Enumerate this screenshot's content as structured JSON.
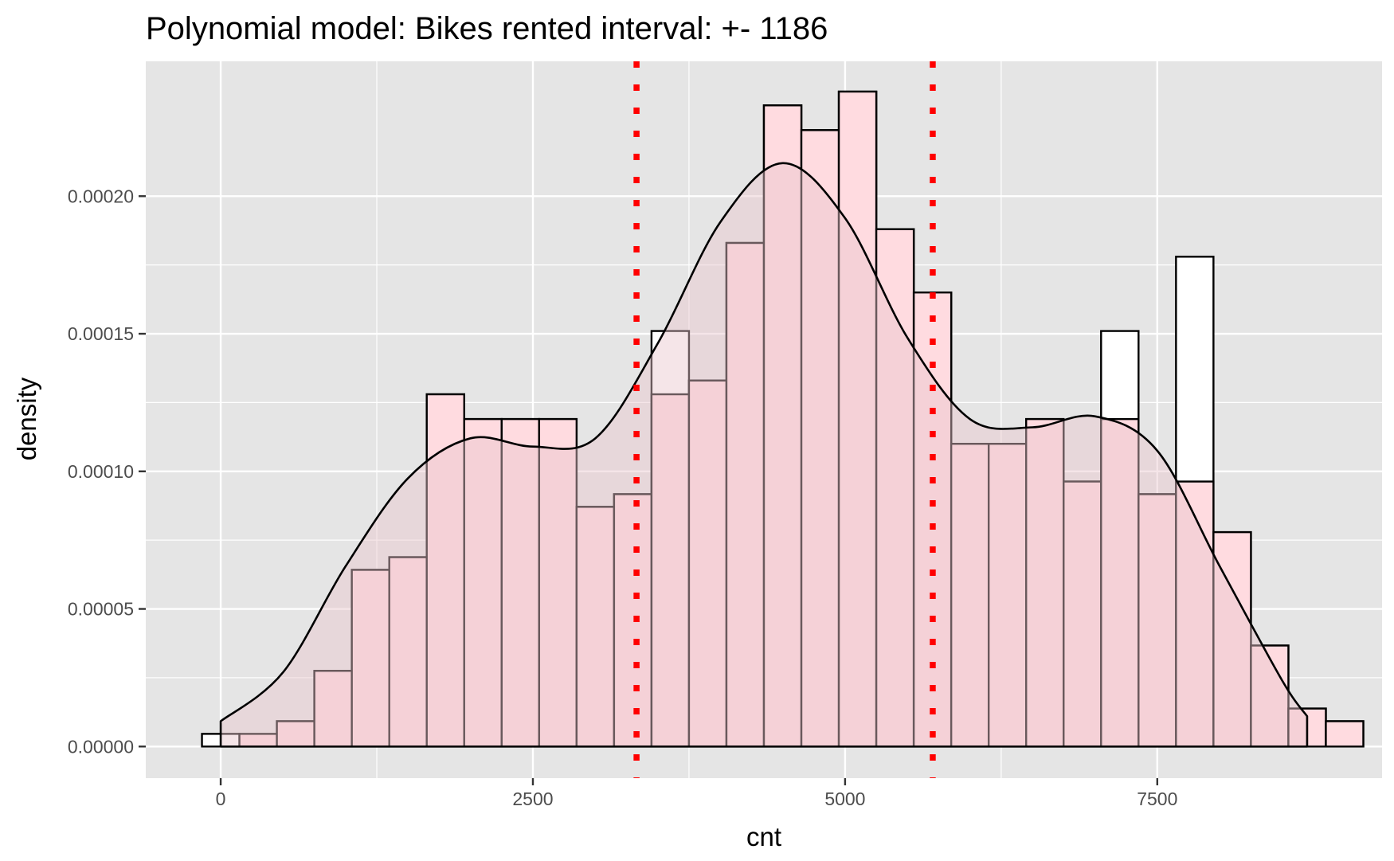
{
  "chart_data": {
    "type": "histogram",
    "title": "Polynomial model: Bikes rented interval: +- 1186",
    "xlabel": "cnt",
    "ylabel": "density",
    "xlim": [
      -600,
      9300
    ],
    "ylim": [
      -1.15e-05,
      0.000249
    ],
    "x_ticks": [
      0,
      2500,
      5000,
      7500
    ],
    "x_tick_labels": [
      "0",
      "2500",
      "5000",
      "7500"
    ],
    "y_ticks": [
      0,
      5e-05,
      0.0001,
      0.00015,
      0.0002
    ],
    "y_tick_labels": [
      "0.00000",
      "0.00005",
      "0.00010",
      "0.00015",
      "0.00020"
    ],
    "grid": true,
    "legend": "none",
    "bin_width": 300,
    "first_bin_left": -150,
    "histogram_density": [
      4.6e-06,
      0,
      9.2e-06,
      2.75e-05,
      6.42e-05,
      6.88e-05,
      0.000128,
      0.000119,
      0.000119,
      0.000119,
      8.71e-05,
      9.17e-05,
      0.000151,
      0.000133,
      0.000183,
      0.000233,
      0.000224,
      0.000238,
      0.000188,
      0.000165,
      0.00011,
      0.00011,
      0.000119,
      9.63e-05,
      0.000151,
      9.17e-05,
      0.000178,
      7.79e-05,
      3.67e-05,
      1.38e-05,
      9.2e-06
    ],
    "prediction_density": [
      0,
      4.6e-06,
      9.2e-06,
      2.75e-05,
      6.42e-05,
      6.88e-05,
      0.000128,
      0.000119,
      0.000119,
      0.000119,
      8.71e-05,
      9.17e-05,
      0.000128,
      0.000133,
      0.000183,
      0.000233,
      0.000224,
      0.000238,
      0.000188,
      0.000165,
      0.00011,
      0.00011,
      0.000119,
      9.63e-05,
      0.000119,
      9.17e-05,
      9.63e-05,
      7.79e-05,
      3.67e-05,
      1.38e-05,
      9.2e-06
    ],
    "density_curve": {
      "x": [
        0,
        500,
        1000,
        1500,
        2000,
        2500,
        3000,
        3500,
        4000,
        4500,
        5000,
        5500,
        6000,
        6500,
        7000,
        7500,
        8000,
        8500,
        8700
      ],
      "y": [
        9.2e-06,
        2.7e-05,
        6.55e-05,
        9.75e-05,
        0.000112,
        0.000109,
        0.000112,
        0.0001465,
        0.0001905,
        0.000212,
        0.000192,
        0.0001485,
        0.000119,
        0.000116,
        0.00012,
        0.0001075,
        6.55e-05,
        2.4e-05,
        1.1e-05
      ]
    },
    "interval_lines": [
      3330,
      5702
    ],
    "colors": {
      "panel": "#e5e5e5",
      "grid": "#ffffff",
      "histogram_fill": "#ffffff",
      "histogram_stroke": "#000000",
      "prediction_fill": "#ffdbe0",
      "density_fill": "#e8c6cb",
      "density_stroke": "#000000",
      "interval_line": "#ff0000"
    }
  }
}
